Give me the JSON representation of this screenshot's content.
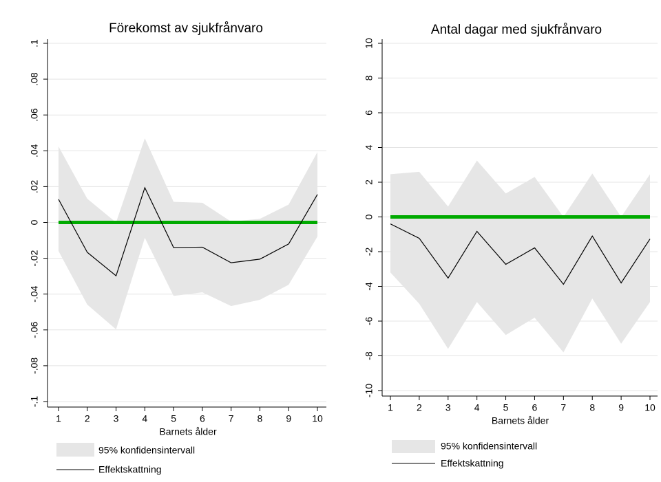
{
  "chart_data": [
    {
      "type": "line",
      "title": "Förekomst av sjukfrånvaro",
      "xlabel": "Barnets ålder",
      "x": [
        1,
        2,
        3,
        4,
        5,
        6,
        7,
        8,
        9,
        10
      ],
      "xlim": [
        1,
        10
      ],
      "xticks": [
        1,
        2,
        3,
        4,
        5,
        6,
        7,
        8,
        9,
        10
      ],
      "ylim": [
        -0.1,
        0.1
      ],
      "yticks": [
        {
          "value": -0.1,
          "label": "-.1"
        },
        {
          "value": -0.08,
          "label": "-.08"
        },
        {
          "value": -0.06,
          "label": "-.06"
        },
        {
          "value": -0.04,
          "label": "-.04"
        },
        {
          "value": -0.02,
          "label": "-.02"
        },
        0,
        {
          "value": 0.02,
          "label": ".02"
        },
        {
          "value": 0.04,
          "label": ".04"
        },
        {
          "value": 0.06,
          "label": ".06"
        },
        {
          "value": 0.08,
          "label": ".08"
        },
        {
          "value": 0.1,
          "label": ".1"
        }
      ],
      "grid": true,
      "ci": {
        "name": "95% konfidensintervall",
        "color": "#e6e6e6",
        "upper": [
          0.0424,
          0.0132,
          0,
          0.047,
          0.0115,
          0.011,
          0.0005,
          0.002,
          0.01,
          0.0393
        ],
        "lower": [
          -0.016,
          -0.0459,
          -0.0597,
          -0.0086,
          -0.041,
          -0.039,
          -0.0467,
          -0.0432,
          -0.0348,
          -0.0079
        ]
      },
      "series": [
        {
          "name": "Effektskattning",
          "color": "#000000",
          "values": [
            0.0129,
            -0.0167,
            -0.0298,
            0.0194,
            -0.014,
            -0.0138,
            -0.0225,
            -0.0205,
            -0.012,
            0.0156
          ]
        }
      ],
      "reference_line": {
        "value": 0,
        "color": "#00aa00"
      }
    },
    {
      "type": "line",
      "title": "Antal dagar med sjukfrånvaro",
      "xlabel": "Barnets ålder",
      "x": [
        1,
        2,
        3,
        4,
        5,
        6,
        7,
        8,
        9,
        10
      ],
      "xlim": [
        1,
        10
      ],
      "xticks": [
        1,
        2,
        3,
        4,
        5,
        6,
        7,
        8,
        9,
        10
      ],
      "ylim": [
        -10,
        10
      ],
      "yticks": [
        -10,
        -8,
        -6,
        -4,
        -2,
        0,
        2,
        4,
        6,
        8,
        10
      ],
      "grid": true,
      "ci": {
        "name": "95% konfidensintervall",
        "color": "#e6e6e6",
        "upper": [
          2.46,
          2.6,
          0.6,
          3.25,
          1.35,
          2.3,
          0,
          2.5,
          0,
          2.46
        ],
        "lower": [
          -3.2,
          -5.0,
          -7.6,
          -4.9,
          -6.8,
          -5.8,
          -7.8,
          -4.7,
          -7.3,
          -4.9
        ]
      },
      "series": [
        {
          "name": "Effektskattning",
          "color": "#000000",
          "values": [
            -0.4,
            -1.23,
            -3.52,
            -0.83,
            -2.73,
            -1.78,
            -3.88,
            -1.1,
            -3.8,
            -1.27
          ]
        }
      ],
      "reference_line": {
        "value": 0,
        "color": "#00aa00"
      }
    }
  ]
}
